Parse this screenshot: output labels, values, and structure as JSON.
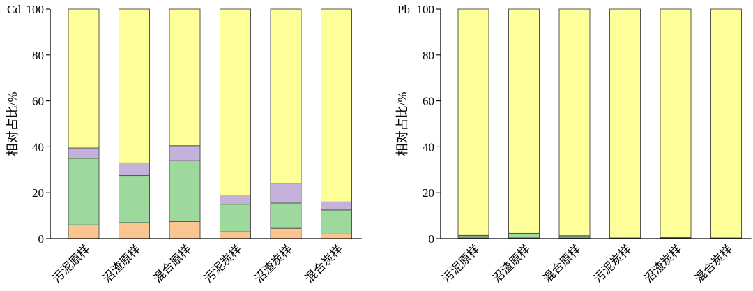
{
  "chart_data": [
    {
      "type": "bar",
      "stacked": true,
      "panel_label": "Cd",
      "ylabel": "相对占比/%",
      "ylim": [
        0,
        100
      ],
      "yticks": [
        0,
        20,
        40,
        60,
        80,
        100
      ],
      "categories": [
        "污泥原样",
        "沼渣原样",
        "混合原样",
        "污泥炭样",
        "沼渣炭样",
        "混合炭样"
      ],
      "series": [
        {
          "color": "#fbc592",
          "values": [
            6,
            7,
            7.5,
            3,
            4.5,
            2
          ]
        },
        {
          "color": "#9dd99d",
          "values": [
            29,
            20.5,
            26.5,
            12,
            11,
            10.5
          ]
        },
        {
          "color": "#c5b2db",
          "values": [
            4.5,
            5.5,
            6.5,
            4,
            8.5,
            3.5
          ]
        },
        {
          "color": "#ffff99",
          "values": [
            60.5,
            67,
            59.5,
            81,
            76,
            84
          ]
        }
      ]
    },
    {
      "type": "bar",
      "stacked": true,
      "panel_label": "Pb",
      "ylabel": "相对占比/%",
      "ylim": [
        0,
        100
      ],
      "yticks": [
        0,
        20,
        40,
        60,
        80,
        100
      ],
      "categories": [
        "污泥原样",
        "沼渣原样",
        "混合原样",
        "污泥炭样",
        "沼渣炭样",
        "混合炭样"
      ],
      "series": [
        {
          "color": "#fbc592",
          "values": [
            0.3,
            0.3,
            0.3,
            0.1,
            0.1,
            0.1
          ]
        },
        {
          "color": "#9dd99d",
          "values": [
            1.0,
            1.9,
            0.9,
            0.1,
            0.3,
            0.1
          ]
        },
        {
          "color": "#c5b2db",
          "values": [
            0.1,
            0.1,
            0.1,
            0.1,
            0.3,
            0.1
          ]
        },
        {
          "color": "#ffff99",
          "values": [
            98.6,
            97.7,
            98.7,
            99.7,
            99.3,
            99.7
          ]
        }
      ]
    }
  ]
}
